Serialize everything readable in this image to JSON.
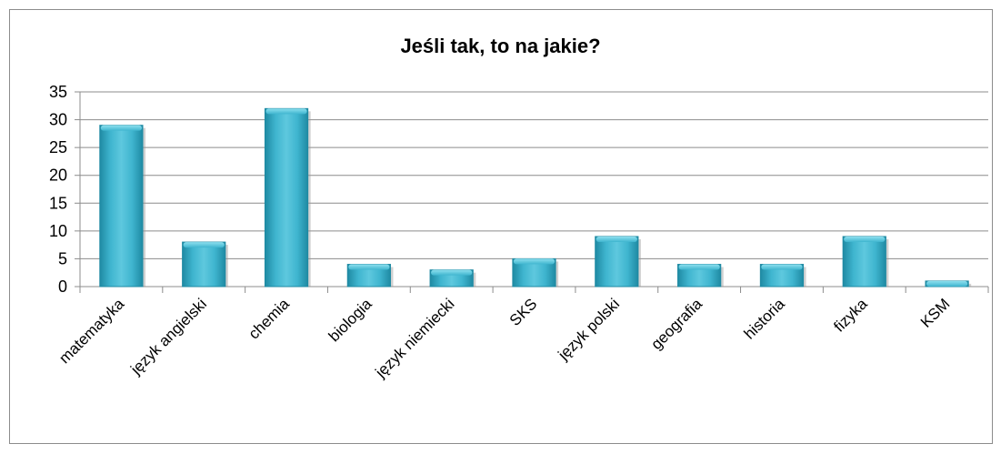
{
  "chart_data": {
    "type": "bar",
    "title": "Jeśli tak, to na jakie?",
    "categories": [
      "matematyka",
      "język angielski",
      "chemia",
      "biologia",
      "język niemiecki",
      "SKS",
      "język polski",
      "geografia",
      "historia",
      "fizyka",
      "KSM"
    ],
    "values": [
      29,
      8,
      32,
      4,
      3,
      5,
      9,
      4,
      4,
      9,
      1
    ],
    "ylim": [
      0,
      35
    ],
    "yticks": [
      0,
      5,
      10,
      15,
      20,
      25,
      30,
      35
    ],
    "grid": true,
    "legend": "none",
    "bar_color": "#3fb5cf",
    "bar_edge_color": "#1f8aa3"
  }
}
